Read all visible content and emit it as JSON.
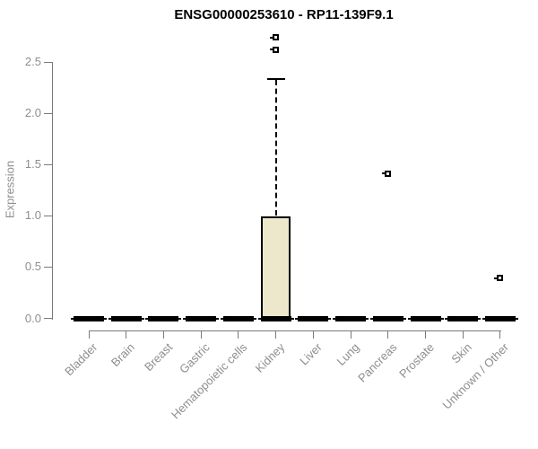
{
  "title": "ENSG00000253610 - RP11-139F9.1",
  "chart_data": {
    "type": "boxplot",
    "title": "ENSG00000253610 - RP11-139F9.1",
    "xlabel": "",
    "ylabel": "Expression",
    "ylim": [
      0,
      2.8
    ],
    "grid": false,
    "legend": null,
    "yticks": [
      {
        "value": 0.0,
        "label": "0.0"
      },
      {
        "value": 0.5,
        "label": "0.5"
      },
      {
        "value": 1.0,
        "label": "1.0"
      },
      {
        "value": 1.5,
        "label": "1.5"
      },
      {
        "value": 2.0,
        "label": "2.0"
      },
      {
        "value": 2.5,
        "label": "2.5"
      }
    ],
    "categories": [
      "Bladder",
      "Brain",
      "Breast",
      "Gastric",
      "Hematopoietic cells",
      "Kidney",
      "Liver",
      "Lung",
      "Pancreas",
      "Prostate",
      "Skin",
      "Unknown / Other"
    ],
    "boxes": [
      {
        "category": "Bladder",
        "q1": 0,
        "median": 0,
        "q3": 0,
        "whisker_low": 0,
        "whisker_high": 0,
        "outliers": []
      },
      {
        "category": "Brain",
        "q1": 0,
        "median": 0,
        "q3": 0,
        "whisker_low": 0,
        "whisker_high": 0,
        "outliers": []
      },
      {
        "category": "Breast",
        "q1": 0,
        "median": 0,
        "q3": 0,
        "whisker_low": 0,
        "whisker_high": 0,
        "outliers": []
      },
      {
        "category": "Gastric",
        "q1": 0,
        "median": 0,
        "q3": 0,
        "whisker_low": 0,
        "whisker_high": 0,
        "outliers": []
      },
      {
        "category": "Hematopoietic cells",
        "q1": 0,
        "median": 0,
        "q3": 0,
        "whisker_low": 0,
        "whisker_high": 0,
        "outliers": []
      },
      {
        "category": "Kidney",
        "q1": 0,
        "median": 0,
        "q3": 0.99,
        "whisker_low": 0,
        "whisker_high": 2.33,
        "outliers": [
          2.62,
          2.74
        ]
      },
      {
        "category": "Liver",
        "q1": 0,
        "median": 0,
        "q3": 0,
        "whisker_low": 0,
        "whisker_high": 0,
        "outliers": []
      },
      {
        "category": "Lung",
        "q1": 0,
        "median": 0,
        "q3": 0,
        "whisker_low": 0,
        "whisker_high": 0,
        "outliers": []
      },
      {
        "category": "Pancreas",
        "q1": 0,
        "median": 0,
        "q3": 0,
        "whisker_low": 0,
        "whisker_high": 0,
        "outliers": [
          1.41
        ]
      },
      {
        "category": "Prostate",
        "q1": 0,
        "median": 0,
        "q3": 0,
        "whisker_low": 0,
        "whisker_high": 0,
        "outliers": []
      },
      {
        "category": "Skin",
        "q1": 0,
        "median": 0,
        "q3": 0,
        "whisker_low": 0,
        "whisker_high": 0,
        "outliers": []
      },
      {
        "category": "Unknown / Other",
        "q1": 0,
        "median": 0,
        "q3": 0,
        "whisker_low": 0,
        "whisker_high": 0,
        "outliers": [
          0.39
        ]
      }
    ],
    "colors": {
      "box_fill": "#EDE7CB",
      "box_border": "#000000",
      "median": "#000000",
      "outlier_fill": "#ffffff",
      "axis": "#7a7a7a",
      "tick_label": "#8e8e8e",
      "title": "#000000",
      "background": "#ffffff"
    }
  }
}
